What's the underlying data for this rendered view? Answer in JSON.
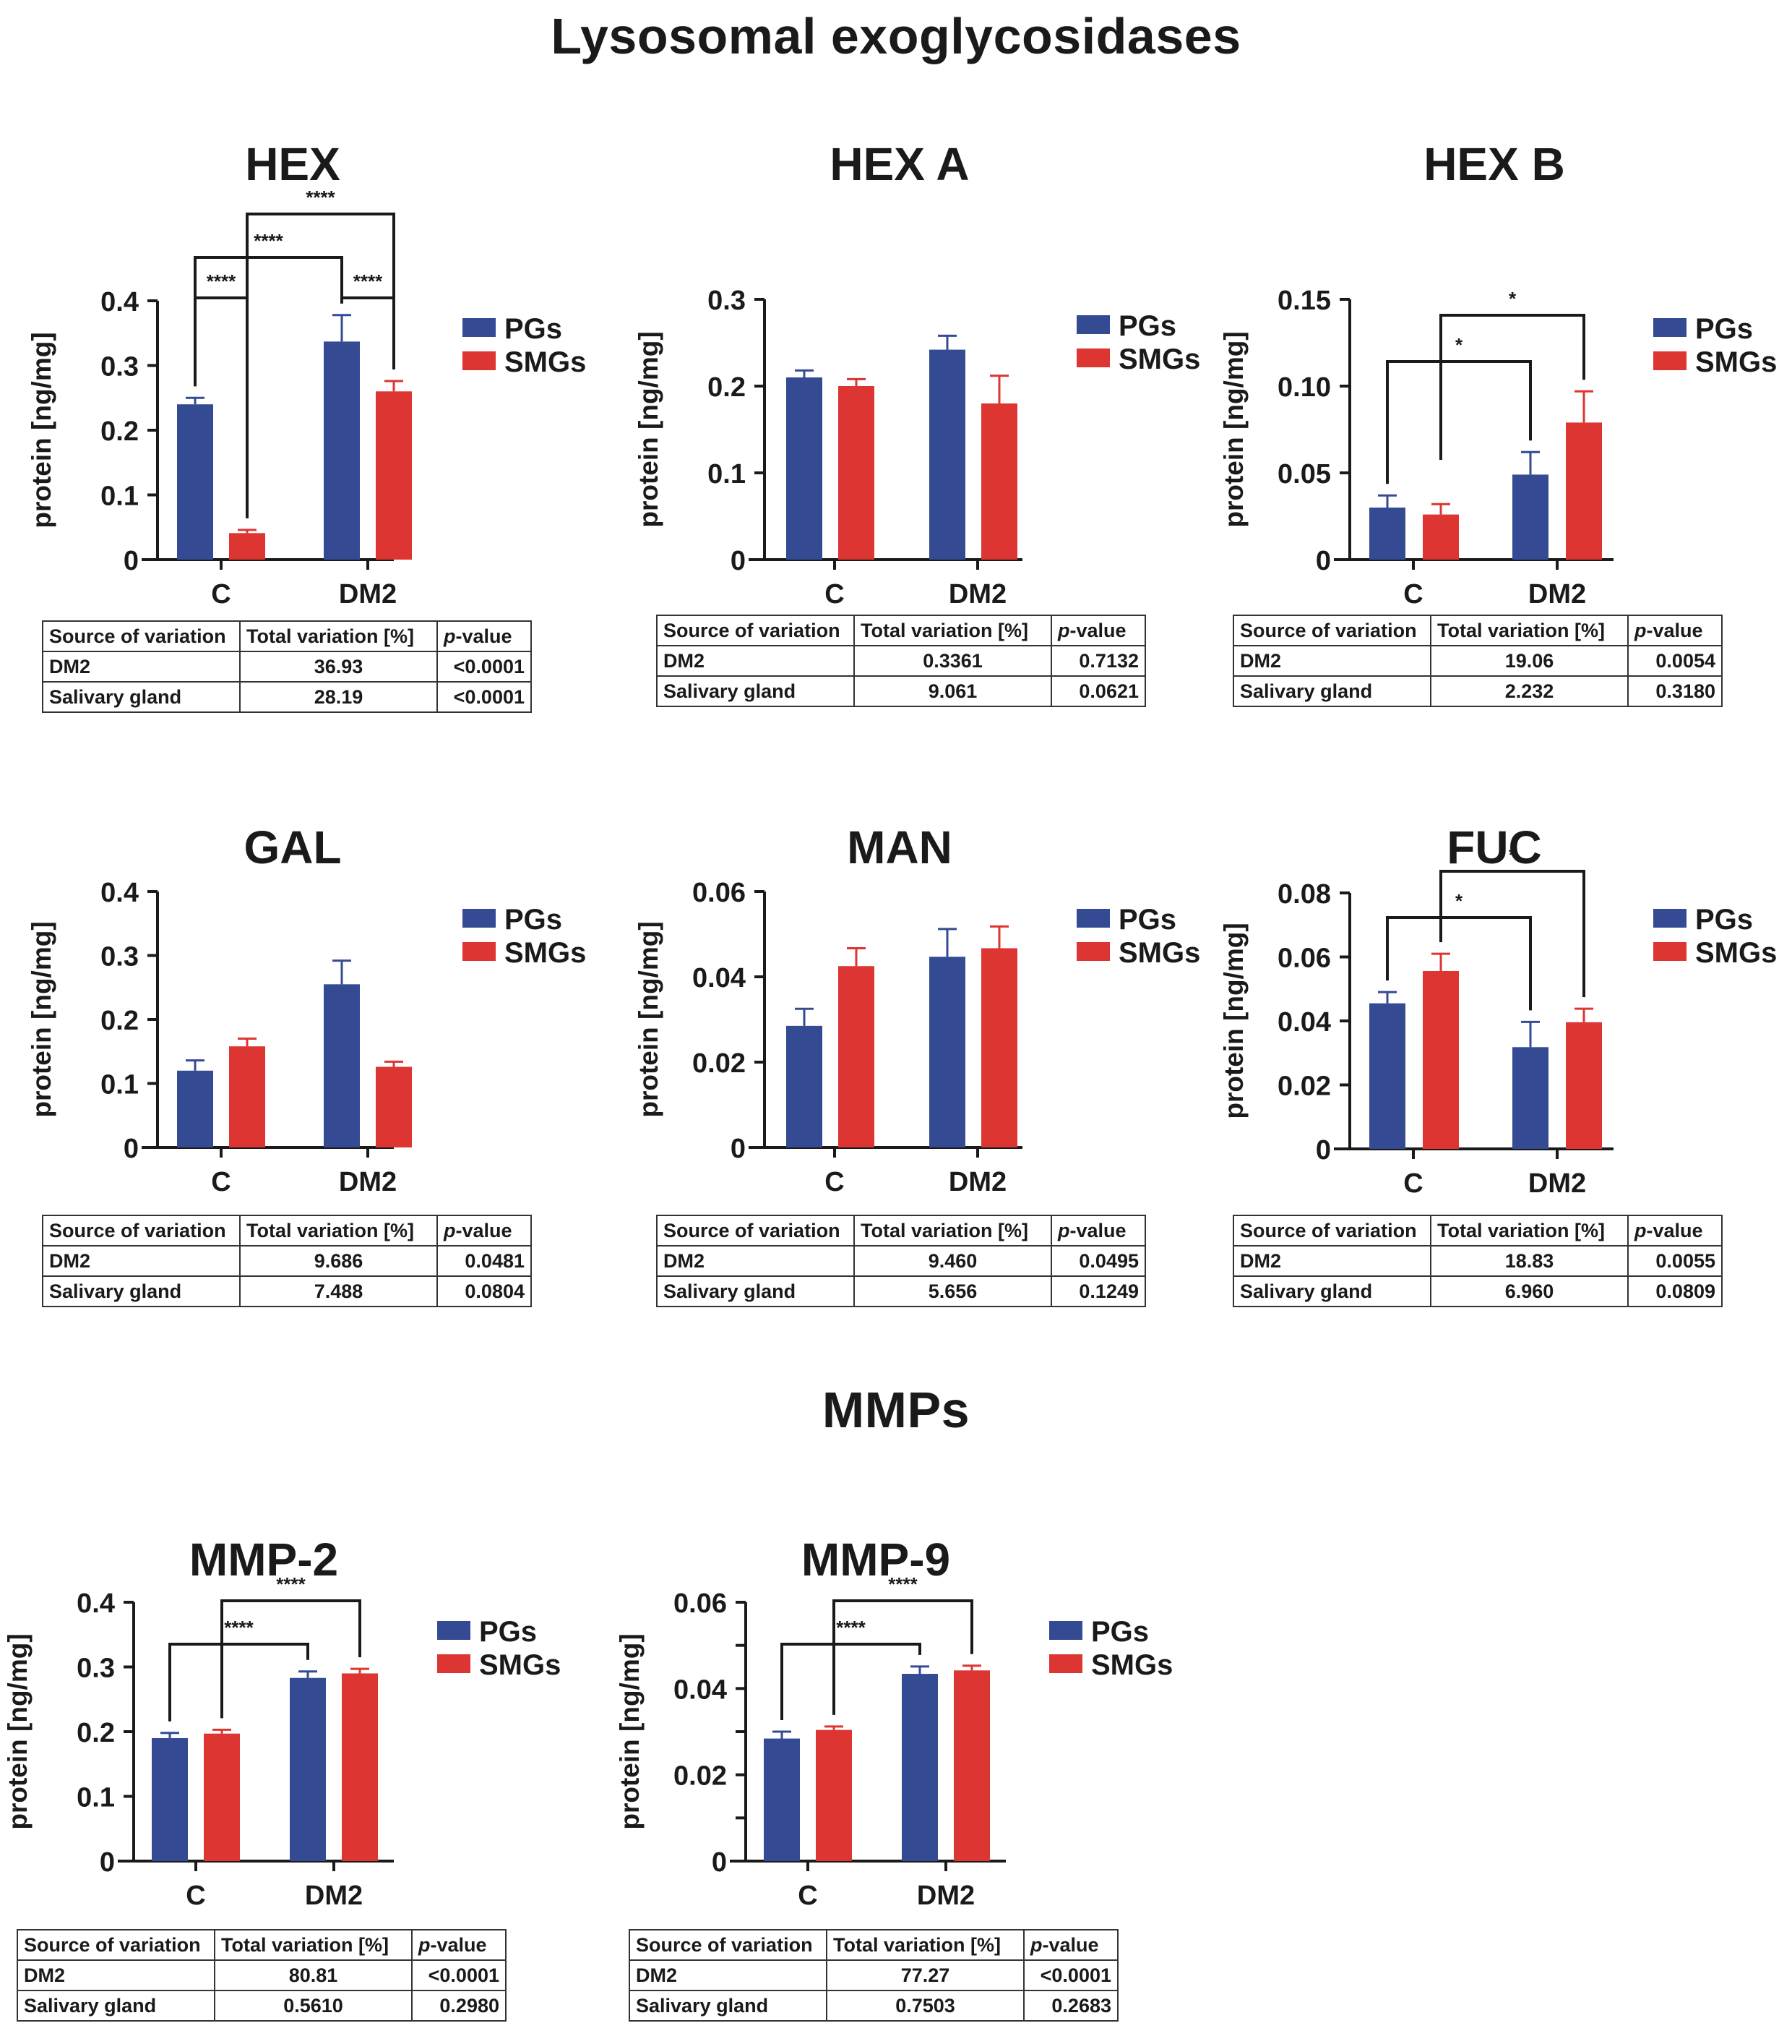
{
  "sections": {
    "lysosomal_title": "Lysosomal exoglycosidases",
    "mmps_title": "MMPs"
  },
  "colors": {
    "PGs": "#344b93",
    "SMGs": "#dc3532",
    "axis": "#1a1a1a"
  },
  "table_header": {
    "source": "Source of variation",
    "total": "Total variation [%]",
    "p_italic": "p",
    "p_rest": "-value"
  },
  "chart_data": [
    {
      "id": "hex",
      "type": "bar",
      "title": "HEX",
      "ylabel": "protein [ng/mg]",
      "xlabel": "",
      "categories": [
        "C",
        "DM2"
      ],
      "yticks": [
        "0",
        "0.1",
        "0.2",
        "0.3",
        "0.4"
      ],
      "ylim": [
        0,
        0.4
      ],
      "legend": {
        "position": "right",
        "entries": [
          "PGs",
          "SMGs"
        ]
      },
      "series": [
        {
          "name": "PGs",
          "values": [
            0.24,
            0.337
          ],
          "error_upper": [
            0.25,
            0.378
          ]
        },
        {
          "name": "SMGs",
          "values": [
            0.041,
            0.26
          ],
          "error_upper": [
            0.046,
            0.276
          ]
        }
      ],
      "significance": [
        {
          "from": "C-PGs",
          "to": "C-SMGs",
          "label": "****"
        },
        {
          "from": "C-PGs",
          "to": "DM2-PGs",
          "label": "****"
        },
        {
          "from": "DM2-PGs",
          "to": "DM2-SMGs",
          "label": "****"
        },
        {
          "from": "C-SMGs",
          "to": "DM2-SMGs",
          "label": "****"
        }
      ],
      "stats_table": [
        {
          "source": "DM2",
          "total": "36.93",
          "p": "<0.0001"
        },
        {
          "source": "Salivary gland",
          "total": "28.19",
          "p": "<0.0001"
        }
      ]
    },
    {
      "id": "hexa",
      "type": "bar",
      "title": "HEX A",
      "ylabel": "protein [ng/mg]",
      "xlabel": "",
      "categories": [
        "C",
        "DM2"
      ],
      "yticks": [
        "0",
        "0.1",
        "0.2",
        "0.3"
      ],
      "ylim": [
        0,
        0.3
      ],
      "legend": {
        "position": "right",
        "entries": [
          "PGs",
          "SMGs"
        ]
      },
      "series": [
        {
          "name": "PGs",
          "values": [
            0.21,
            0.242
          ],
          "error_upper": [
            0.218,
            0.258
          ]
        },
        {
          "name": "SMGs",
          "values": [
            0.2,
            0.18
          ],
          "error_upper": [
            0.208,
            0.212
          ]
        }
      ],
      "significance": [],
      "stats_table": [
        {
          "source": "DM2",
          "total": "0.3361",
          "p": "0.7132"
        },
        {
          "source": "Salivary gland",
          "total": "9.061",
          "p": "0.0621"
        }
      ]
    },
    {
      "id": "hexb",
      "type": "bar",
      "title": "HEX B",
      "ylabel": "protein [ng/mg]",
      "xlabel": "",
      "categories": [
        "C",
        "DM2"
      ],
      "yticks": [
        "0",
        "0.05",
        "0.10",
        "0.15"
      ],
      "ylim": [
        0,
        0.15
      ],
      "legend": {
        "position": "right",
        "entries": [
          "PGs",
          "SMGs"
        ]
      },
      "series": [
        {
          "name": "PGs",
          "values": [
            0.03,
            0.049
          ],
          "error_upper": [
            0.037,
            0.062
          ]
        },
        {
          "name": "SMGs",
          "values": [
            0.026,
            0.079
          ],
          "error_upper": [
            0.032,
            0.097
          ]
        }
      ],
      "significance": [
        {
          "from": "C-PGs",
          "to": "DM2-PGs",
          "label": "*"
        },
        {
          "from": "C-SMGs",
          "to": "DM2-SMGs",
          "label": "*"
        }
      ],
      "stats_table": [
        {
          "source": "DM2",
          "total": "19.06",
          "p": "0.0054"
        },
        {
          "source": "Salivary gland",
          "total": "2.232",
          "p": "0.3180"
        }
      ]
    },
    {
      "id": "gal",
      "type": "bar",
      "title": "GAL",
      "ylabel": "protein [ng/mg]",
      "xlabel": "",
      "categories": [
        "C",
        "DM2"
      ],
      "yticks": [
        "0",
        "0.1",
        "0.2",
        "0.3",
        "0.4"
      ],
      "ylim": [
        0,
        0.4
      ],
      "legend": {
        "position": "right",
        "entries": [
          "PGs",
          "SMGs"
        ]
      },
      "series": [
        {
          "name": "PGs",
          "values": [
            0.12,
            0.255
          ],
          "error_upper": [
            0.136,
            0.292
          ]
        },
        {
          "name": "SMGs",
          "values": [
            0.158,
            0.126
          ],
          "error_upper": [
            0.17,
            0.134
          ]
        }
      ],
      "significance": [],
      "stats_table": [
        {
          "source": "DM2",
          "total": "9.686",
          "p": "0.0481"
        },
        {
          "source": "Salivary gland",
          "total": "7.488",
          "p": "0.0804"
        }
      ]
    },
    {
      "id": "man",
      "type": "bar",
      "title": "MAN",
      "ylabel": "protein [ng/mg]",
      "xlabel": "",
      "categories": [
        "C",
        "DM2"
      ],
      "yticks": [
        "0",
        "0.02",
        "0.04",
        "0.06"
      ],
      "ylim": [
        0,
        0.06
      ],
      "legend": {
        "position": "right",
        "entries": [
          "PGs",
          "SMGs"
        ]
      },
      "series": [
        {
          "name": "PGs",
          "values": [
            0.0285,
            0.0447
          ],
          "error_upper": [
            0.0325,
            0.0512
          ]
        },
        {
          "name": "SMGs",
          "values": [
            0.0425,
            0.0467
          ],
          "error_upper": [
            0.0467,
            0.0518
          ]
        }
      ],
      "significance": [],
      "stats_table": [
        {
          "source": "DM2",
          "total": "9.460",
          "p": "0.0495"
        },
        {
          "source": "Salivary gland",
          "total": "5.656",
          "p": "0.1249"
        }
      ]
    },
    {
      "id": "fuc",
      "type": "bar",
      "title": "FUC",
      "ylabel": "protein [ng/mg]",
      "xlabel": "",
      "categories": [
        "C",
        "DM2"
      ],
      "yticks": [
        "0",
        "0.02",
        "0.04",
        "0.06",
        "0.08"
      ],
      "ylim": [
        0,
        0.08
      ],
      "legend": {
        "position": "right",
        "entries": [
          "PGs",
          "SMGs"
        ]
      },
      "series": [
        {
          "name": "PGs",
          "values": [
            0.0455,
            0.0318
          ],
          "error_upper": [
            0.049,
            0.0397
          ]
        },
        {
          "name": "SMGs",
          "values": [
            0.0556,
            0.0396
          ],
          "error_upper": [
            0.061,
            0.0438
          ]
        }
      ],
      "significance": [
        {
          "from": "C-PGs",
          "to": "DM2-PGs",
          "label": "*"
        },
        {
          "from": "C-SMGs",
          "to": "DM2-SMGs",
          "label": "*"
        }
      ],
      "stats_table": [
        {
          "source": "DM2",
          "total": "18.83",
          "p": "0.0055"
        },
        {
          "source": "Salivary gland",
          "total": "6.960",
          "p": "0.0809"
        }
      ]
    },
    {
      "id": "mmp2",
      "type": "bar",
      "title": "MMP-2",
      "ylabel": "protein [ng/mg]",
      "xlabel": "",
      "categories": [
        "C",
        "DM2"
      ],
      "yticks": [
        "0",
        "0.1",
        "0.2",
        "0.3",
        "0.4"
      ],
      "ylim": [
        0,
        0.4
      ],
      "legend": {
        "position": "right",
        "entries": [
          "PGs",
          "SMGs"
        ]
      },
      "series": [
        {
          "name": "PGs",
          "values": [
            0.19,
            0.283
          ],
          "error_upper": [
            0.198,
            0.293
          ]
        },
        {
          "name": "SMGs",
          "values": [
            0.197,
            0.29
          ],
          "error_upper": [
            0.203,
            0.297
          ]
        }
      ],
      "significance": [
        {
          "from": "C-PGs",
          "to": "DM2-PGs",
          "label": "****"
        },
        {
          "from": "C-SMGs",
          "to": "DM2-SMGs",
          "label": "****"
        }
      ],
      "stats_table": [
        {
          "source": "DM2",
          "total": "80.81",
          "p": "<0.0001"
        },
        {
          "source": "Salivary gland",
          "total": "0.5610",
          "p": "0.2980"
        }
      ]
    },
    {
      "id": "mmp9",
      "type": "bar",
      "title": "MMP-9",
      "ylabel": "protein [ng/mg]",
      "xlabel": "",
      "categories": [
        "C",
        "DM2"
      ],
      "yticks": [
        "0",
        "0.02",
        "0.04",
        "0.06"
      ],
      "ylim": [
        0,
        0.06
      ],
      "minor_ticks": [
        0.01,
        0.03,
        0.05
      ],
      "legend": {
        "position": "right",
        "entries": [
          "PGs",
          "SMGs"
        ]
      },
      "series": [
        {
          "name": "PGs",
          "values": [
            0.0284,
            0.0434
          ],
          "error_upper": [
            0.03,
            0.0451
          ]
        },
        {
          "name": "SMGs",
          "values": [
            0.0304,
            0.0442
          ],
          "error_upper": [
            0.0312,
            0.0453
          ]
        }
      ],
      "significance": [
        {
          "from": "C-PGs",
          "to": "DM2-PGs",
          "label": "****"
        },
        {
          "from": "C-SMGs",
          "to": "DM2-SMGs",
          "label": "****"
        }
      ],
      "stats_table": [
        {
          "source": "DM2",
          "total": "77.27",
          "p": "<0.0001"
        },
        {
          "source": "Salivary gland",
          "total": "0.7503",
          "p": "0.2683"
        }
      ]
    }
  ]
}
